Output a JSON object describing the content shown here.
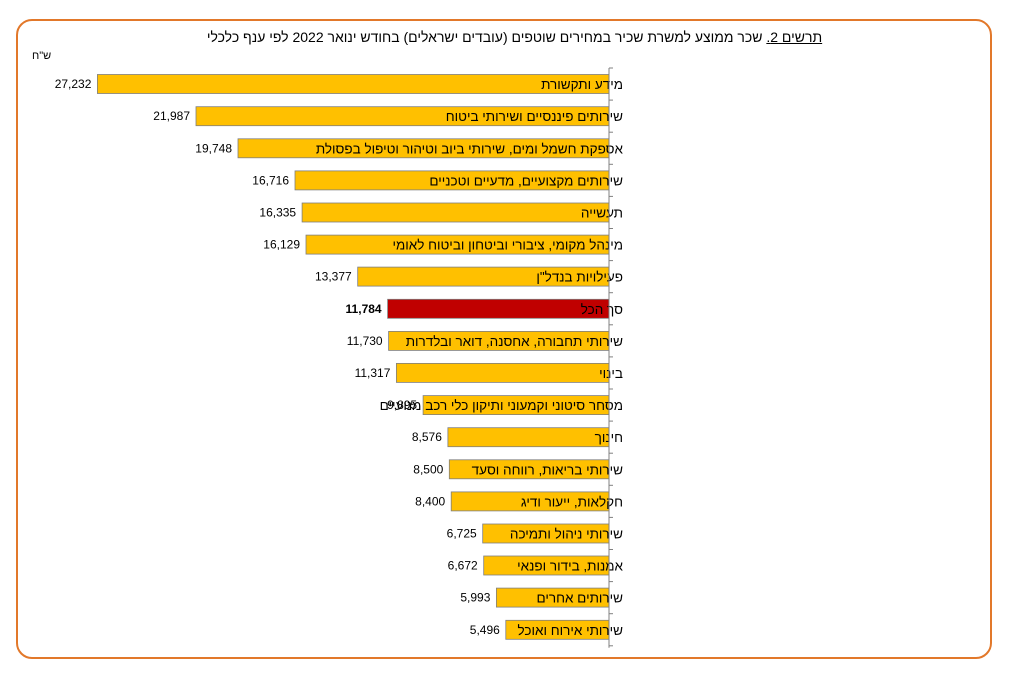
{
  "chart_data": {
    "type": "bar",
    "orientation": "horizontal",
    "title_prefix": "תרשים 2.",
    "title": "שכר ממוצע למשרת שכיר במחירים שוטפים (עובדים ישראלים) בחודש ינואר 2022 לפי ענף כלכלי",
    "unit_label": "ש\"ח",
    "xlim": [
      0,
      28000
    ],
    "categories": [
      "מידע ותקשורת",
      "שירותים פיננסיים ושירותי ביטוח",
      "אספקת חשמל ומים, שירותי ביוב וטיהור וטיפול בפסולת",
      "שירותים מקצועיים, מדעיים וטכניים",
      "תעשייה",
      "מינהל מקומי, ציבורי וביטחון וביטוח לאומי",
      "פעילויות בנדל\"ן",
      "סך הכל",
      "שירותי תחבורה, אחסנה, דואר ובלדרות",
      "בינוי",
      "מסחר סיטוני וקמעוני ותיקון כלי רכב מנועיים",
      "חינוך",
      "שירותי בריאות, רווחה וסעד",
      "חקלאות, ייעור ודיג",
      "שירותי ניהול ותמיכה",
      "אמנות, בידור ופנאי",
      "שירותים אחרים",
      "שירותי אירוח ואוכל"
    ],
    "values": [
      27232,
      21987,
      19748,
      16716,
      16335,
      16129,
      13377,
      11784,
      11730,
      11317,
      9895,
      8576,
      8500,
      8400,
      6725,
      6672,
      5993,
      5496
    ],
    "value_labels": [
      "27,232",
      "21,987",
      "19,748",
      "16,716",
      "16,335",
      "16,129",
      "13,377",
      "11,784",
      "11,730",
      "11,317",
      "9,895",
      "8,576",
      "8,500",
      "8,400",
      "6,725",
      "6,672",
      "5,993",
      "5,496"
    ],
    "highlight_index": 7,
    "colors": {
      "bar": "#ffc000",
      "highlight": "#c00000",
      "bar_edge": "#7f7f7f",
      "axis": "#808080",
      "border": "#e2782a"
    }
  }
}
